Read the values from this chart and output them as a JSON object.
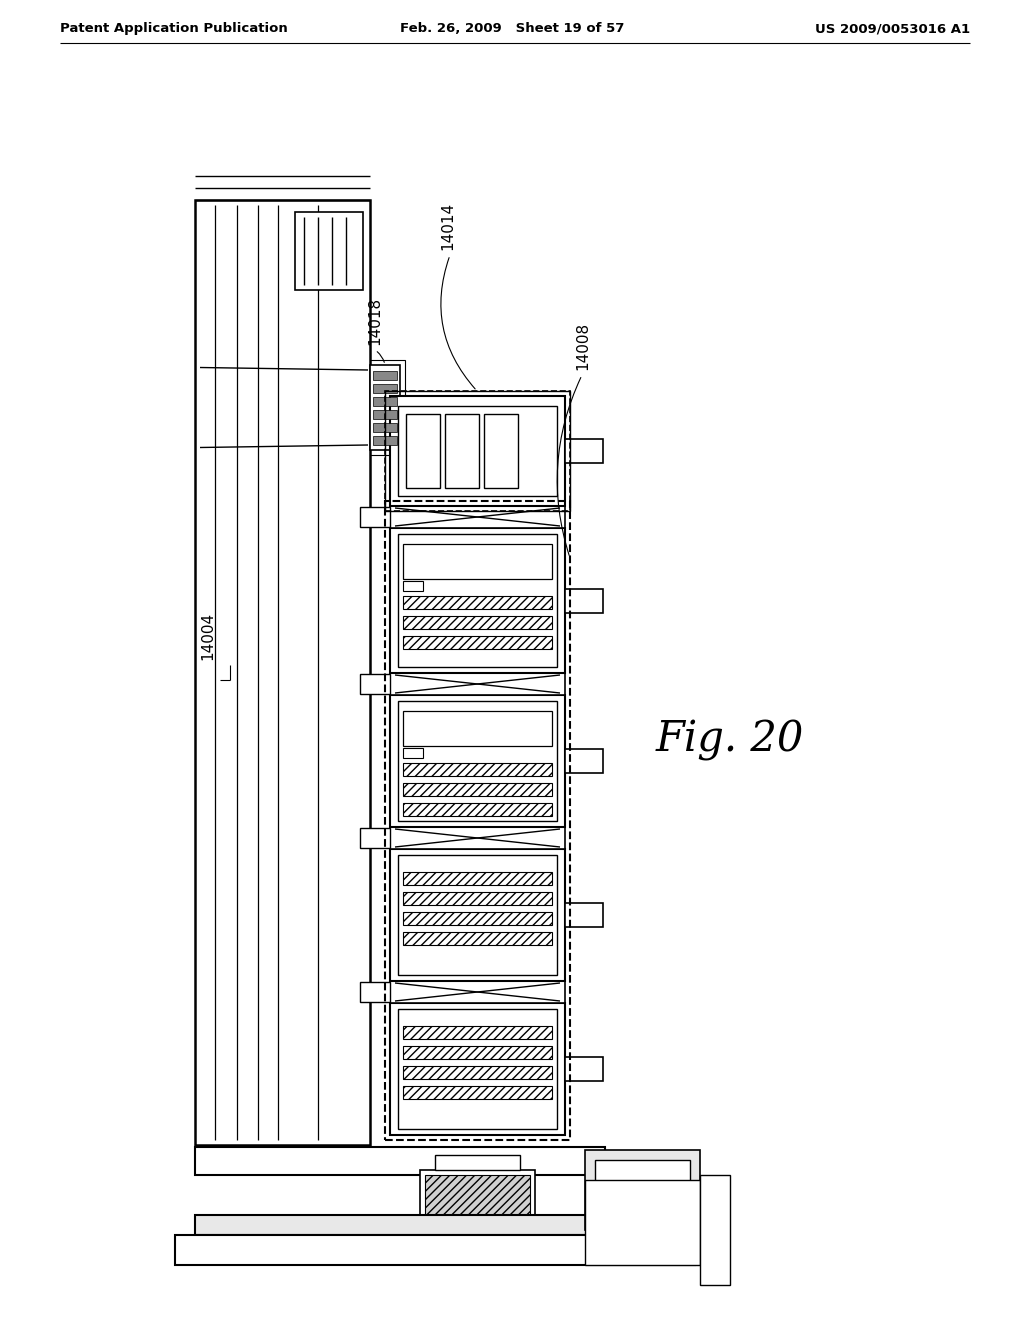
{
  "background_color": "#ffffff",
  "header_left": "Patent Application Publication",
  "header_center": "Feb. 26, 2009   Sheet 19 of 57",
  "header_right": "US 2009/0053016 A1",
  "fig_label": "Fig. 20",
  "line_color": "#000000"
}
